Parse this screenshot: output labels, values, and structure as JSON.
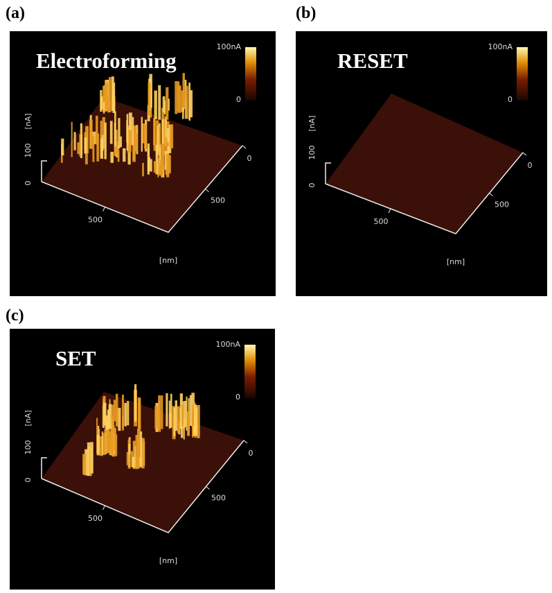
{
  "panels": [
    {
      "label": "(a)",
      "title": "Electroforming",
      "colorbar_max": "100nA",
      "colorbar_min": "0",
      "z_unit": "[nA]",
      "z_ticks": [
        "100",
        "0"
      ],
      "x_tick": "500",
      "y_ticks": [
        "0",
        "500"
      ],
      "xy_unit": "[nm]"
    },
    {
      "label": "(b)",
      "title": "RESET",
      "colorbar_max": "100nA",
      "colorbar_min": "0",
      "z_unit": "[nA]",
      "z_ticks": [
        "100",
        "0"
      ],
      "x_tick": "500",
      "y_ticks": [
        "0",
        "500"
      ],
      "xy_unit": "[nm]"
    },
    {
      "label": "(c)",
      "title": "SET",
      "colorbar_max": "100nA",
      "colorbar_min": "0",
      "z_unit": "[nA]",
      "z_ticks": [
        "100",
        "0"
      ],
      "x_tick": "500",
      "y_ticks": [
        "0",
        "500"
      ],
      "xy_unit": "[nm]"
    }
  ]
}
